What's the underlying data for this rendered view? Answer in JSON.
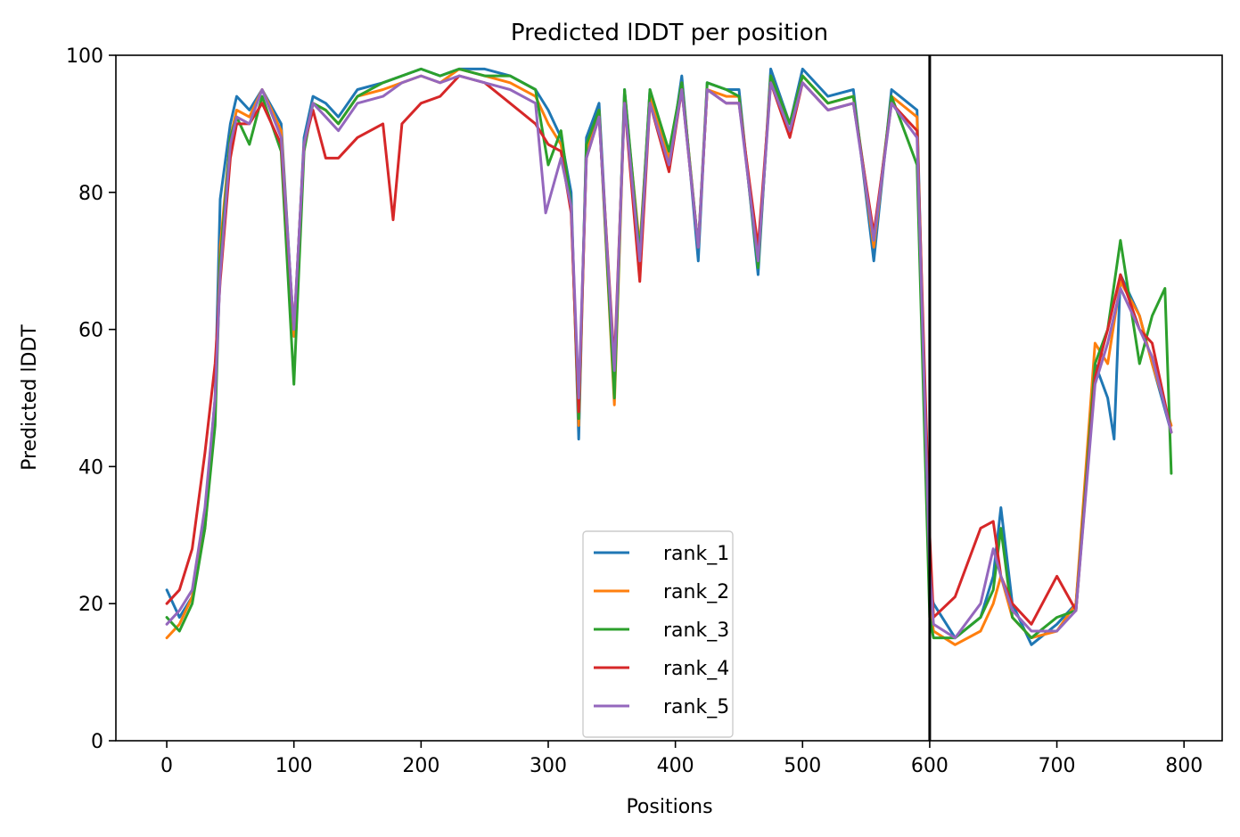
{
  "chart_data": {
    "type": "line",
    "title": "Predicted lDDT per position",
    "xlabel": "Positions",
    "ylabel": "Predicted lDDT",
    "xlim": [
      -40,
      830
    ],
    "ylim": [
      0,
      100
    ],
    "xticks": [
      0,
      100,
      200,
      300,
      400,
      500,
      600,
      700,
      800
    ],
    "yticks": [
      0,
      20,
      40,
      60,
      80,
      100
    ],
    "grid": false,
    "legend_position": "lower center",
    "vertical_line_x": 600,
    "series": [
      {
        "name": "rank_1",
        "color": "#1f77b4",
        "x": [
          0,
          10,
          20,
          30,
          38,
          42,
          50,
          55,
          65,
          75,
          90,
          100,
          108,
          115,
          125,
          135,
          150,
          170,
          185,
          200,
          215,
          230,
          250,
          270,
          290,
          300,
          310,
          318,
          324,
          330,
          340,
          352,
          360,
          372,
          380,
          395,
          405,
          418,
          425,
          440,
          450,
          465,
          475,
          490,
          500,
          520,
          540,
          556,
          570,
          590,
          600,
          603,
          620,
          640,
          650,
          656,
          665,
          680,
          700,
          715,
          730,
          740,
          745,
          750,
          765,
          775,
          790
        ],
        "y": [
          22,
          18,
          21,
          33,
          50,
          79,
          90,
          94,
          92,
          95,
          90,
          59,
          88,
          94,
          93,
          91,
          95,
          96,
          97,
          98,
          97,
          98,
          98,
          97,
          95,
          92,
          88,
          80,
          44,
          88,
          93,
          52,
          95,
          70,
          95,
          84,
          97,
          70,
          96,
          95,
          95,
          68,
          98,
          90,
          98,
          94,
          95,
          70,
          95,
          92,
          22,
          20,
          15,
          18,
          24,
          34,
          20,
          14,
          17,
          20,
          55,
          50,
          44,
          68,
          62,
          55,
          45
        ]
      },
      {
        "name": "rank_2",
        "color": "#ff7f0e",
        "x": [
          0,
          10,
          20,
          30,
          38,
          42,
          50,
          55,
          65,
          75,
          90,
          100,
          108,
          115,
          125,
          135,
          150,
          170,
          185,
          200,
          215,
          230,
          250,
          270,
          290,
          300,
          310,
          318,
          324,
          330,
          340,
          352,
          360,
          372,
          380,
          395,
          405,
          418,
          425,
          440,
          450,
          465,
          475,
          490,
          500,
          520,
          540,
          556,
          570,
          590,
          600,
          603,
          620,
          640,
          650,
          656,
          665,
          680,
          700,
          715,
          730,
          740,
          750,
          765,
          775,
          790
        ],
        "y": [
          15,
          17,
          21,
          31,
          48,
          72,
          88,
          92,
          91,
          95,
          89,
          59,
          87,
          93,
          92,
          90,
          94,
          95,
          96,
          97,
          96,
          98,
          97,
          96,
          94,
          90,
          87,
          78,
          46,
          86,
          92,
          49,
          94,
          72,
          94,
          85,
          96,
          72,
          95,
          94,
          94,
          70,
          97,
          90,
          97,
          93,
          94,
          72,
          94,
          91,
          20,
          16,
          14,
          16,
          20,
          24,
          18,
          15,
          16,
          20,
          58,
          55,
          67,
          62,
          55,
          46
        ]
      },
      {
        "name": "rank_3",
        "color": "#2ca02c",
        "x": [
          0,
          10,
          20,
          30,
          38,
          42,
          50,
          55,
          65,
          75,
          90,
          100,
          108,
          115,
          125,
          135,
          150,
          170,
          185,
          200,
          215,
          230,
          250,
          270,
          290,
          300,
          310,
          318,
          324,
          330,
          340,
          352,
          360,
          372,
          380,
          395,
          405,
          418,
          425,
          440,
          450,
          465,
          475,
          490,
          500,
          520,
          540,
          556,
          570,
          590,
          600,
          603,
          620,
          640,
          650,
          656,
          665,
          680,
          700,
          715,
          730,
          740,
          750,
          765,
          775,
          785,
          790
        ],
        "y": [
          18,
          16,
          20,
          31,
          46,
          70,
          88,
          91,
          87,
          94,
          86,
          52,
          86,
          93,
          92,
          90,
          94,
          96,
          97,
          98,
          97,
          98,
          97,
          97,
          95,
          84,
          89,
          78,
          47,
          87,
          92,
          50,
          95,
          71,
          95,
          86,
          96,
          72,
          96,
          95,
          94,
          69,
          97,
          90,
          97,
          93,
          94,
          73,
          94,
          84,
          18,
          15,
          15,
          18,
          22,
          31,
          18,
          15,
          18,
          19,
          55,
          60,
          73,
          55,
          62,
          66,
          39
        ]
      },
      {
        "name": "rank_4",
        "color": "#d62728",
        "x": [
          0,
          10,
          20,
          30,
          38,
          42,
          50,
          55,
          65,
          75,
          90,
          100,
          108,
          115,
          125,
          135,
          150,
          170,
          178,
          185,
          200,
          215,
          230,
          250,
          270,
          290,
          300,
          310,
          318,
          324,
          330,
          340,
          352,
          360,
          372,
          380,
          395,
          405,
          418,
          425,
          440,
          450,
          465,
          475,
          490,
          500,
          520,
          540,
          556,
          570,
          590,
          600,
          603,
          620,
          640,
          650,
          656,
          665,
          680,
          700,
          715,
          730,
          740,
          750,
          765,
          775,
          790
        ],
        "y": [
          20,
          22,
          28,
          42,
          55,
          67,
          85,
          90,
          90,
          93,
          87,
          60,
          87,
          92,
          85,
          85,
          88,
          90,
          76,
          90,
          93,
          94,
          97,
          96,
          93,
          90,
          87,
          86,
          77,
          48,
          85,
          91,
          55,
          93,
          67,
          93,
          83,
          95,
          72,
          95,
          93,
          93,
          72,
          96,
          88,
          96,
          92,
          93,
          74,
          93,
          89,
          30,
          18,
          21,
          31,
          32,
          24,
          20,
          17,
          24,
          19,
          53,
          60,
          68,
          60,
          58,
          45
        ]
      },
      {
        "name": "rank_5",
        "color": "#9467bd",
        "x": [
          0,
          10,
          20,
          30,
          38,
          42,
          50,
          55,
          65,
          75,
          90,
          100,
          108,
          115,
          125,
          135,
          150,
          170,
          185,
          200,
          215,
          230,
          250,
          270,
          290,
          298,
          310,
          318,
          324,
          330,
          340,
          352,
          360,
          372,
          380,
          395,
          405,
          418,
          425,
          440,
          450,
          465,
          475,
          490,
          500,
          520,
          540,
          556,
          570,
          590,
          600,
          603,
          620,
          640,
          650,
          656,
          665,
          680,
          700,
          715,
          730,
          740,
          750,
          765,
          775,
          790
        ],
        "y": [
          17,
          19,
          22,
          34,
          50,
          68,
          87,
          91,
          90,
          95,
          88,
          60,
          87,
          93,
          91,
          89,
          93,
          94,
          96,
          97,
          96,
          97,
          96,
          95,
          93,
          77,
          85,
          78,
          50,
          85,
          91,
          54,
          93,
          70,
          93,
          84,
          95,
          72,
          95,
          93,
          93,
          70,
          96,
          89,
          96,
          92,
          93,
          73,
          93,
          88,
          25,
          17,
          15,
          20,
          28,
          24,
          19,
          16,
          16,
          19,
          52,
          58,
          66,
          60,
          56,
          45
        ]
      }
    ]
  }
}
